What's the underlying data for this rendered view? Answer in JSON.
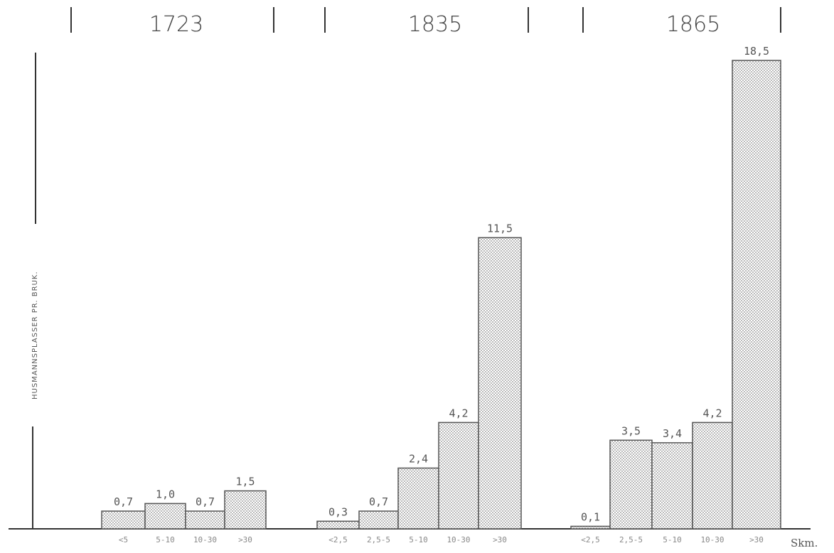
{
  "chart_data": {
    "type": "bar",
    "ylabel": "HUSMANNSPLASSER PR. BRUK.",
    "xunit": "Skm.",
    "legend": "none",
    "grid": false,
    "ylim": [
      0,
      19.5
    ],
    "groups": [
      {
        "year": "1723",
        "categories": [
          "<5",
          "5-10",
          "10-30",
          ">30"
        ],
        "values": [
          0.7,
          1.0,
          0.7,
          1.5
        ],
        "labels": [
          "0,7",
          "1,0",
          "0,7",
          "1,5"
        ]
      },
      {
        "year": "1835",
        "categories": [
          "<2,5",
          "2,5-5",
          "5-10",
          "10-30",
          ">30"
        ],
        "values": [
          0.3,
          0.7,
          2.4,
          4.2,
          11.5
        ],
        "labels": [
          "0,3",
          "0,7",
          "2,4",
          "4,2",
          "11,5"
        ]
      },
      {
        "year": "1865",
        "categories": [
          "<2,5",
          "2,5-5",
          "5-10",
          "10-30",
          ">30"
        ],
        "values": [
          0.1,
          3.5,
          3.4,
          4.2,
          18.5
        ],
        "labels": [
          "0,1",
          "3,5",
          "3,4",
          "4,2",
          "18,5"
        ]
      }
    ]
  }
}
